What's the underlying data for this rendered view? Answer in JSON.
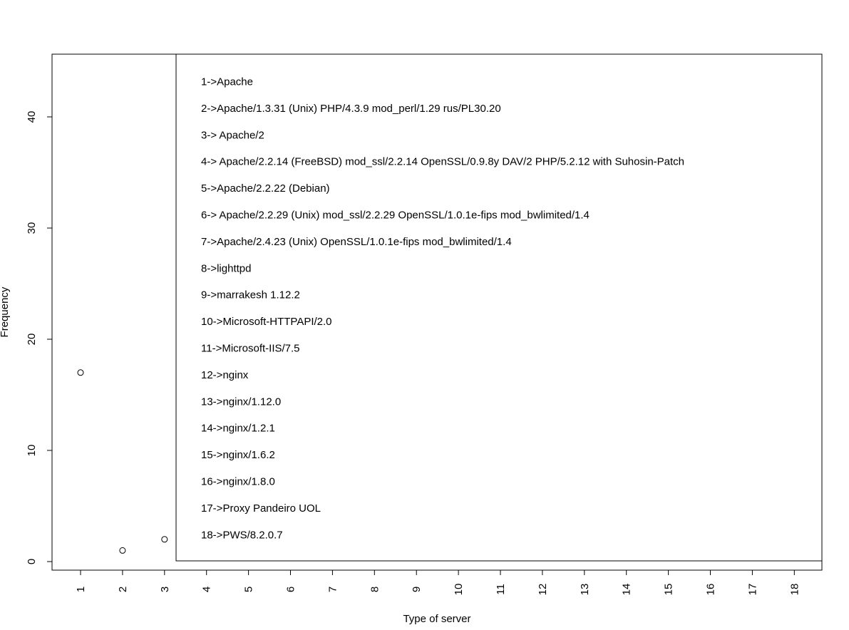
{
  "chart_data": {
    "type": "scatter",
    "title": "",
    "xlabel": "Type of server",
    "ylabel": "Frequency",
    "xlim": [
      1,
      18
    ],
    "ylim": [
      0,
      45
    ],
    "x_ticks": [
      "1",
      "2",
      "3",
      "4",
      "5",
      "6",
      "7",
      "8",
      "9",
      "10",
      "11",
      "12",
      "13",
      "14",
      "15",
      "16",
      "17",
      "18"
    ],
    "y_ticks": [
      "0",
      "10",
      "20",
      "30",
      "40"
    ],
    "grid": false,
    "legend_position": "top-right",
    "points": [
      {
        "x": 1,
        "y": 17
      },
      {
        "x": 2,
        "y": 1
      },
      {
        "x": 3,
        "y": 2
      }
    ],
    "legend": [
      "1->Apache",
      "2->Apache/1.3.31 (Unix) PHP/4.3.9 mod_perl/1.29 rus/PL30.20",
      "3-> Apache/2",
      "4-> Apache/2.2.14 (FreeBSD) mod_ssl/2.2.14 OpenSSL/0.9.8y DAV/2 PHP/5.2.12 with Suhosin-Patch",
      "5->Apache/2.2.22 (Debian)",
      "6-> Apache/2.2.29 (Unix) mod_ssl/2.2.29 OpenSSL/1.0.1e-fips mod_bwlimited/1.4",
      "7->Apache/2.4.23 (Unix) OpenSSL/1.0.1e-fips mod_bwlimited/1.4",
      "8->lighttpd",
      "9->marrakesh 1.12.2",
      "10->Microsoft-HTTPAPI/2.0",
      "11->Microsoft-IIS/7.5",
      "12->nginx",
      "13->nginx/1.12.0",
      "14->nginx/1.2.1",
      "15->nginx/1.6.2",
      "16->nginx/1.8.0",
      "17->Proxy Pandeiro UOL",
      "18->PWS/8.2.0.7"
    ]
  }
}
